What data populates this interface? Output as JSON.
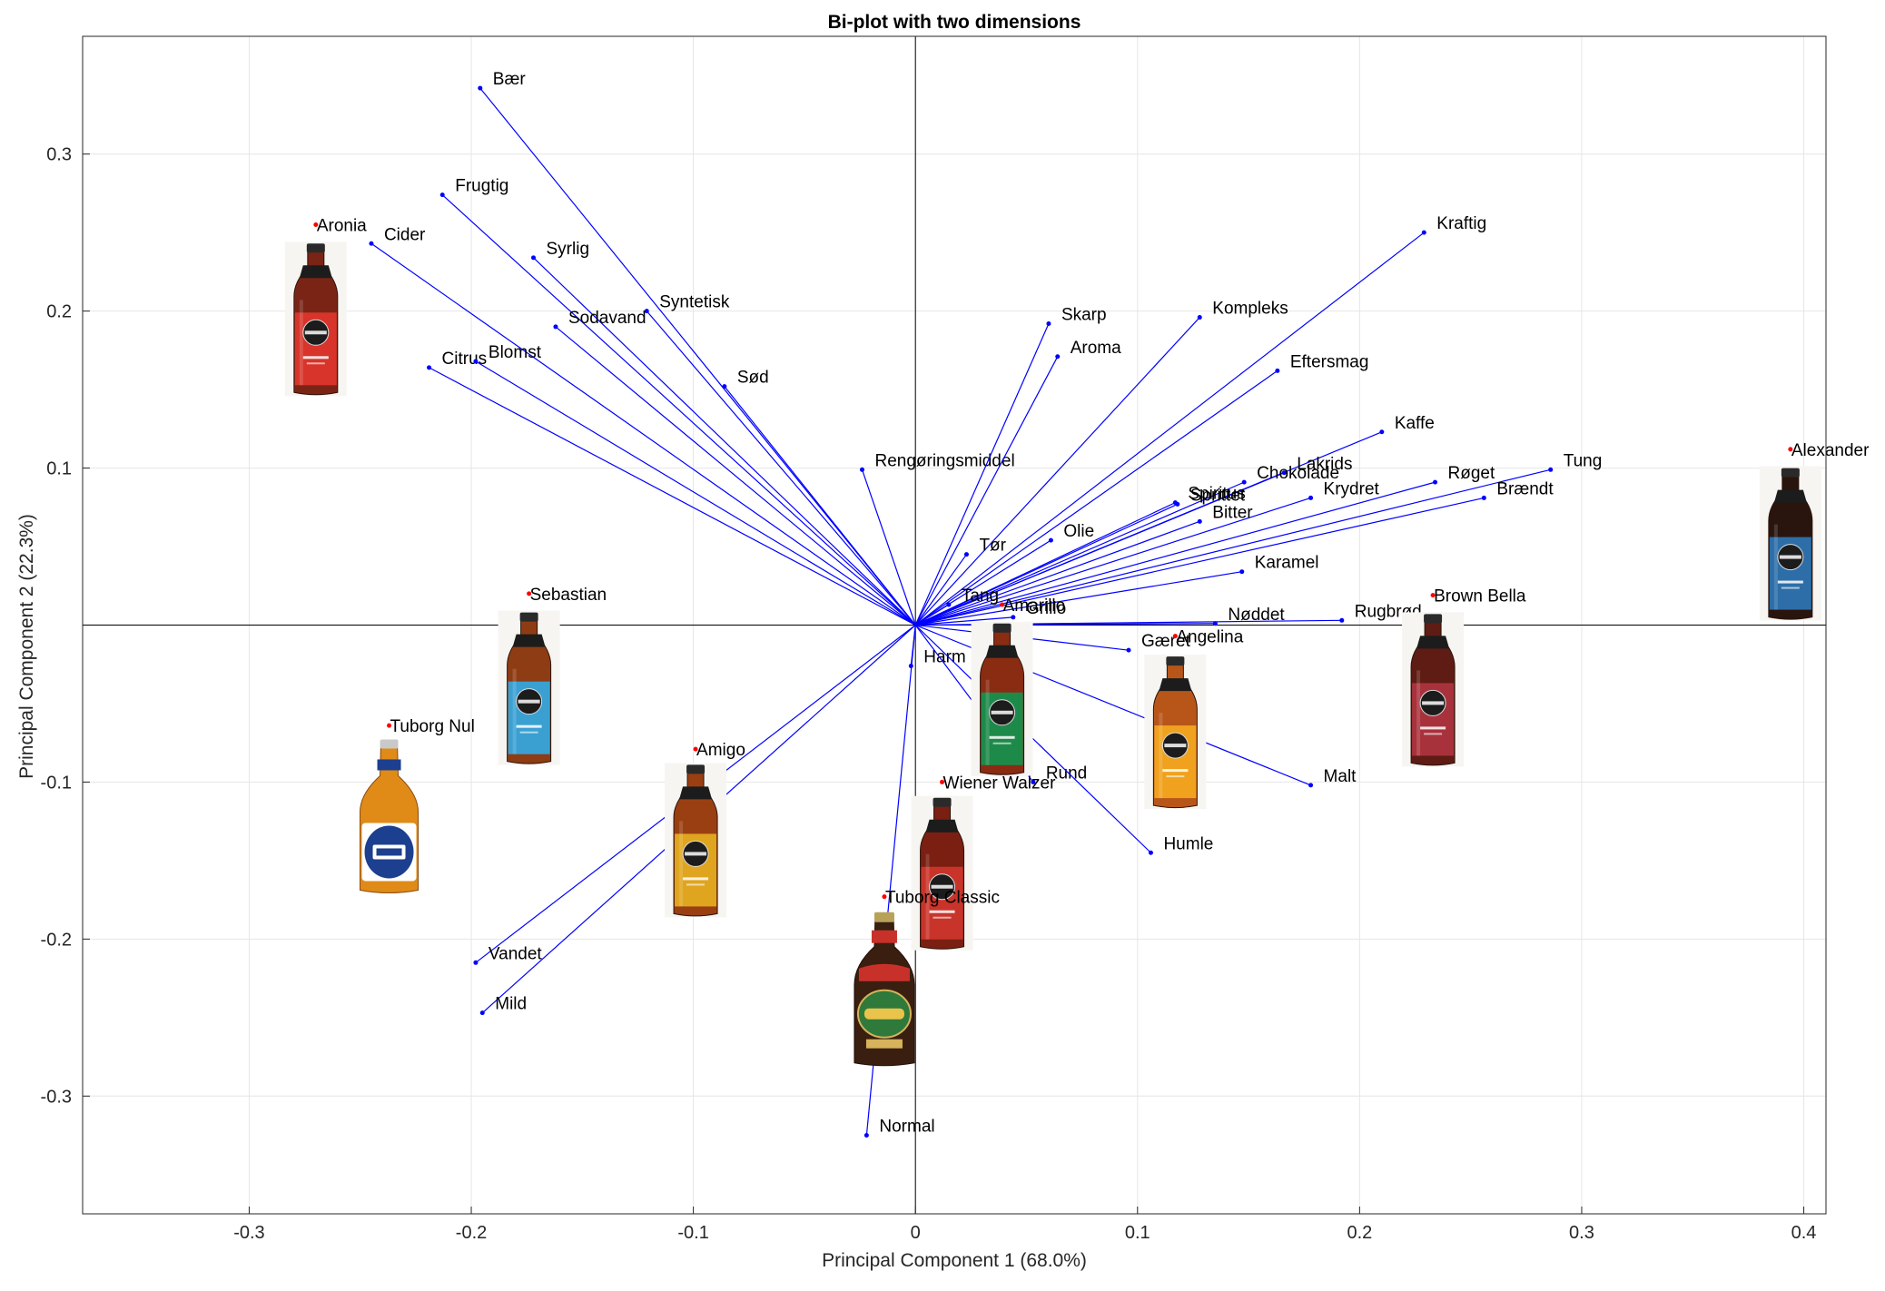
{
  "chart_data": {
    "type": "scatter",
    "title": "Bi-plot with two dimensions",
    "xlabel": "Principal Component 1 (68.0%)",
    "ylabel": "Principal Component 2 (22.3%)",
    "xlim": [
      -0.375,
      0.41
    ],
    "ylim": [
      -0.375,
      0.375
    ],
    "xticks": [
      -0.3,
      -0.2,
      -0.1,
      0,
      0.1,
      0.2,
      0.3,
      0.4
    ],
    "yticks": [
      -0.3,
      -0.2,
      -0.1,
      0.1,
      0.2,
      0.3
    ],
    "xtick_labels": [
      "-0.3",
      "-0.2",
      "-0.1",
      "0",
      "0.1",
      "0.2",
      "0.3",
      "0.4"
    ],
    "ytick_labels": [
      "-0.3",
      "-0.2",
      "-0.1",
      "0.1",
      "0.2",
      "0.3"
    ],
    "grid": true,
    "vector_color": "#0000ff",
    "observation_color": "#ff0000",
    "variables": [
      {
        "name": "Bær",
        "x": -0.196,
        "y": 0.342
      },
      {
        "name": "Frugtig",
        "x": -0.213,
        "y": 0.274
      },
      {
        "name": "Cider",
        "x": -0.245,
        "y": 0.243
      },
      {
        "name": "Syrlig",
        "x": -0.172,
        "y": 0.234
      },
      {
        "name": "Syntetisk",
        "x": -0.121,
        "y": 0.2
      },
      {
        "name": "Sodavand",
        "x": -0.162,
        "y": 0.19
      },
      {
        "name": "Citrus",
        "x": -0.219,
        "y": 0.164
      },
      {
        "name": "Blomst",
        "x": -0.198,
        "y": 0.168
      },
      {
        "name": "Sød",
        "x": -0.086,
        "y": 0.152
      },
      {
        "name": "Rengøringsmiddel",
        "x": -0.024,
        "y": 0.099
      },
      {
        "name": "Skarp",
        "x": 0.06,
        "y": 0.192
      },
      {
        "name": "Aroma",
        "x": 0.064,
        "y": 0.171
      },
      {
        "name": "Kompleks",
        "x": 0.128,
        "y": 0.196
      },
      {
        "name": "Kraftig",
        "x": 0.229,
        "y": 0.25
      },
      {
        "name": "Eftersmag",
        "x": 0.163,
        "y": 0.162
      },
      {
        "name": "Kaffe",
        "x": 0.21,
        "y": 0.123
      },
      {
        "name": "Tung",
        "x": 0.286,
        "y": 0.099
      },
      {
        "name": "Røget",
        "x": 0.234,
        "y": 0.091
      },
      {
        "name": "Brændt",
        "x": 0.256,
        "y": 0.081
      },
      {
        "name": "Lakrids",
        "x": 0.166,
        "y": 0.097
      },
      {
        "name": "Chokolade",
        "x": 0.148,
        "y": 0.091
      },
      {
        "name": "Krydret",
        "x": 0.178,
        "y": 0.081
      },
      {
        "name": "Spiritus",
        "x": 0.117,
        "y": 0.078
      },
      {
        "name": "Sprittet",
        "x": 0.118,
        "y": 0.077
      },
      {
        "name": "Bitter",
        "x": 0.128,
        "y": 0.066
      },
      {
        "name": "Olie",
        "x": 0.061,
        "y": 0.054
      },
      {
        "name": "Tør",
        "x": 0.023,
        "y": 0.045
      },
      {
        "name": "Karamel",
        "x": 0.147,
        "y": 0.034
      },
      {
        "name": "Tang",
        "x": 0.015,
        "y": 0.013
      },
      {
        "name": "Grillo",
        "x": 0.044,
        "y": 0.005
      },
      {
        "name": "Nøddet",
        "x": 0.135,
        "y": 0.001
      },
      {
        "name": "Rugbrød",
        "x": 0.192,
        "y": 0.003
      },
      {
        "name": "Gæret",
        "x": 0.096,
        "y": -0.016
      },
      {
        "name": "Harm",
        "x": -0.002,
        "y": -0.026
      },
      {
        "name": "Rund",
        "x": 0.053,
        "y": -0.1
      },
      {
        "name": "Malt",
        "x": 0.178,
        "y": -0.102
      },
      {
        "name": "Humle",
        "x": 0.106,
        "y": -0.145
      },
      {
        "name": "Vandet",
        "x": -0.198,
        "y": -0.215
      },
      {
        "name": "Mild",
        "x": -0.195,
        "y": -0.247
      },
      {
        "name": "Normal",
        "x": -0.022,
        "y": -0.325
      }
    ],
    "observations": [
      {
        "name": "Aronia",
        "x": -0.27,
        "y": 0.255
      },
      {
        "name": "Sebastian",
        "x": -0.174,
        "y": 0.02
      },
      {
        "name": "Tuborg Nul",
        "x": -0.237,
        "y": -0.064
      },
      {
        "name": "Amigo",
        "x": -0.099,
        "y": -0.079
      },
      {
        "name": "Amarillo",
        "x": 0.039,
        "y": 0.013
      },
      {
        "name": "Wiener Walzer",
        "x": 0.012,
        "y": -0.1
      },
      {
        "name": "Tuborg Classic",
        "x": -0.014,
        "y": -0.173
      },
      {
        "name": "Angelina",
        "x": 0.117,
        "y": -0.007
      },
      {
        "name": "Brown Bella",
        "x": 0.233,
        "y": 0.019
      },
      {
        "name": "Alexander",
        "x": 0.394,
        "y": 0.112
      }
    ],
    "bottles": [
      {
        "name": "Aronia",
        "style": "hjort",
        "label_color": "#d8342b",
        "liquid_color": "#7a2416",
        "x": -0.27,
        "y": 0.195
      },
      {
        "name": "Sebastian",
        "style": "hjort",
        "label_color": "#3aa0d2",
        "liquid_color": "#8e3c14",
        "x": -0.174,
        "y": -0.04
      },
      {
        "name": "Tuborg Nul",
        "style": "tuborg-nul",
        "label_color": "#1d3f8f",
        "liquid_color": "#e08a18",
        "x": -0.237,
        "y": -0.122
      },
      {
        "name": "Amigo",
        "style": "hjort",
        "label_color": "#e0a51f",
        "liquid_color": "#9a3f12",
        "x": -0.099,
        "y": -0.137
      },
      {
        "name": "Amarillo",
        "style": "hjort",
        "label_color": "#1e8a4a",
        "liquid_color": "#8a2c12",
        "x": 0.039,
        "y": -0.047
      },
      {
        "name": "Wiener Walzer",
        "style": "hjort",
        "label_color": "#c9342a",
        "liquid_color": "#7a1f12",
        "x": 0.012,
        "y": -0.158
      },
      {
        "name": "Tuborg Classic",
        "style": "tuborg-classic",
        "label_color": "#2f7a3a",
        "liquid_color": "#3a1f10",
        "x": -0.014,
        "y": -0.232
      },
      {
        "name": "Angelina",
        "style": "hjort",
        "label_color": "#f0a21e",
        "liquid_color": "#b8561a",
        "x": 0.117,
        "y": -0.068
      },
      {
        "name": "Brown Bella",
        "style": "hjort",
        "label_color": "#a8323c",
        "liquid_color": "#5e1c14",
        "x": 0.233,
        "y": -0.041
      },
      {
        "name": "Alexander",
        "style": "hjort",
        "label_color": "#2d6ea8",
        "liquid_color": "#2a140e",
        "x": 0.394,
        "y": 0.052
      }
    ]
  }
}
